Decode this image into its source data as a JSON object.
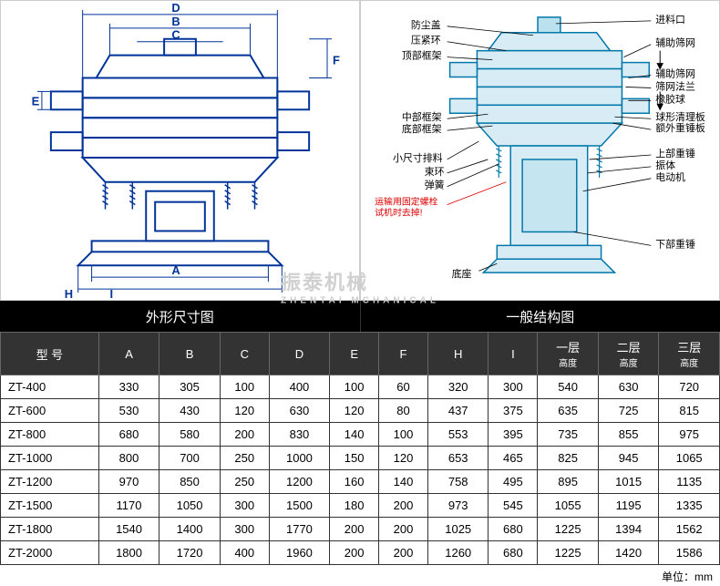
{
  "titles": {
    "left": "外形尺寸图",
    "right": "一般结构图"
  },
  "watermark": {
    "main": "振泰机械",
    "sub": "ZHENTAI MCHANICAL"
  },
  "unit_label": "单位：mm",
  "dim_labels": {
    "A": "A",
    "B": "B",
    "C": "C",
    "D": "D",
    "E": "E",
    "F": "F",
    "H": "H",
    "I": "I"
  },
  "callouts": {
    "l1": "防尘盖",
    "l2": "压紧环",
    "l3": "顶部框架",
    "l4": "中部框架",
    "l5": "底部框架",
    "l6": "小尺寸排料",
    "l7": "束环",
    "l8": "弹簧",
    "l9": "运输用固定螺栓",
    "l9b": "试机时去掉!",
    "l10": "底座",
    "r1": "进料口",
    "r2": "辅助筛网",
    "r3": "辅助筛网",
    "r4": "筛网法兰",
    "r5": "橡胶球",
    "r6": "球形清理板",
    "r7": "额外重锤板",
    "r8": "上部重锤",
    "r9": "振体",
    "r10": "电动机",
    "r11": "下部重锤"
  },
  "table": {
    "headers": [
      "型 号",
      "A",
      "B",
      "C",
      "D",
      "E",
      "F",
      "H",
      "I",
      "一层\n高度",
      "二层\n高度",
      "三层\n高度"
    ],
    "rows": [
      [
        "ZT-400",
        "330",
        "305",
        "100",
        "400",
        "100",
        "60",
        "320",
        "300",
        "540",
        "630",
        "720"
      ],
      [
        "ZT-600",
        "530",
        "430",
        "120",
        "630",
        "120",
        "80",
        "437",
        "375",
        "635",
        "725",
        "815"
      ],
      [
        "ZT-800",
        "680",
        "580",
        "200",
        "830",
        "140",
        "100",
        "553",
        "395",
        "735",
        "855",
        "975"
      ],
      [
        "ZT-1000",
        "800",
        "700",
        "250",
        "1000",
        "150",
        "120",
        "653",
        "465",
        "825",
        "945",
        "1065"
      ],
      [
        "ZT-1200",
        "970",
        "850",
        "250",
        "1200",
        "160",
        "140",
        "758",
        "495",
        "895",
        "1015",
        "1135"
      ],
      [
        "ZT-1500",
        "1170",
        "1050",
        "300",
        "1500",
        "180",
        "200",
        "973",
        "545",
        "1055",
        "1195",
        "1335"
      ],
      [
        "ZT-1800",
        "1540",
        "1400",
        "300",
        "1770",
        "200",
        "200",
        "1025",
        "680",
        "1225",
        "1394",
        "1562"
      ],
      [
        "ZT-2000",
        "1800",
        "1720",
        "400",
        "1960",
        "200",
        "200",
        "1260",
        "680",
        "1225",
        "1420",
        "1586"
      ]
    ]
  },
  "colors": {
    "stroke_blue": "#003399",
    "stroke_cyan": "#00aaff",
    "fill_body": "#d8ecf5",
    "stroke_black": "#000",
    "red": "#d00",
    "header_bg": "#333",
    "table_border": "#333"
  },
  "styling": {
    "line_width_main": 2,
    "line_width_thin": 1,
    "font_callout": 11,
    "font_dim": 13,
    "table_font": 13,
    "header_font": 13
  }
}
